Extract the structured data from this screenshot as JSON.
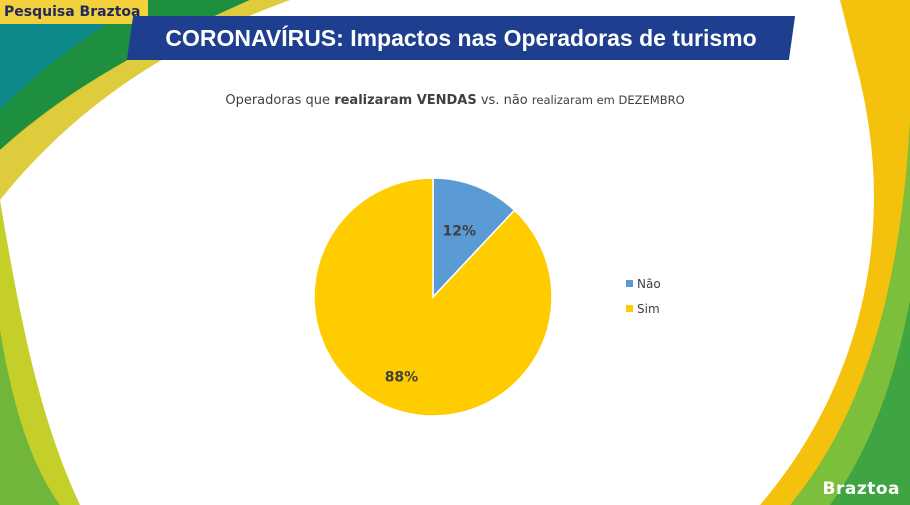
{
  "header": {
    "tag": "Pesquisa Braztoa",
    "title": "CORONAVÍRUS: Impactos nas Operadoras de turismo"
  },
  "subtitle": {
    "part1": "Operadoras que ",
    "bold": "realizaram VENDAS",
    "part2": " vs. não ",
    "part3": "realizaram em DEZEMBRO"
  },
  "logo": "Braztoa",
  "chart_data": {
    "type": "pie",
    "title": "Operadoras que realizaram VENDAS vs. não realizaram em DEZEMBRO",
    "categories": [
      "Não",
      "Sim"
    ],
    "values": [
      12,
      88
    ],
    "labels": [
      "12%",
      "88%"
    ],
    "colors": [
      "#5b9bd5",
      "#ffcc00"
    ],
    "legend_position": "right"
  },
  "colors": {
    "title_bar": "#1e3f8f",
    "tag": "#f3d13d",
    "green": "#3a9a3c",
    "yellow": "#f4c20d"
  }
}
